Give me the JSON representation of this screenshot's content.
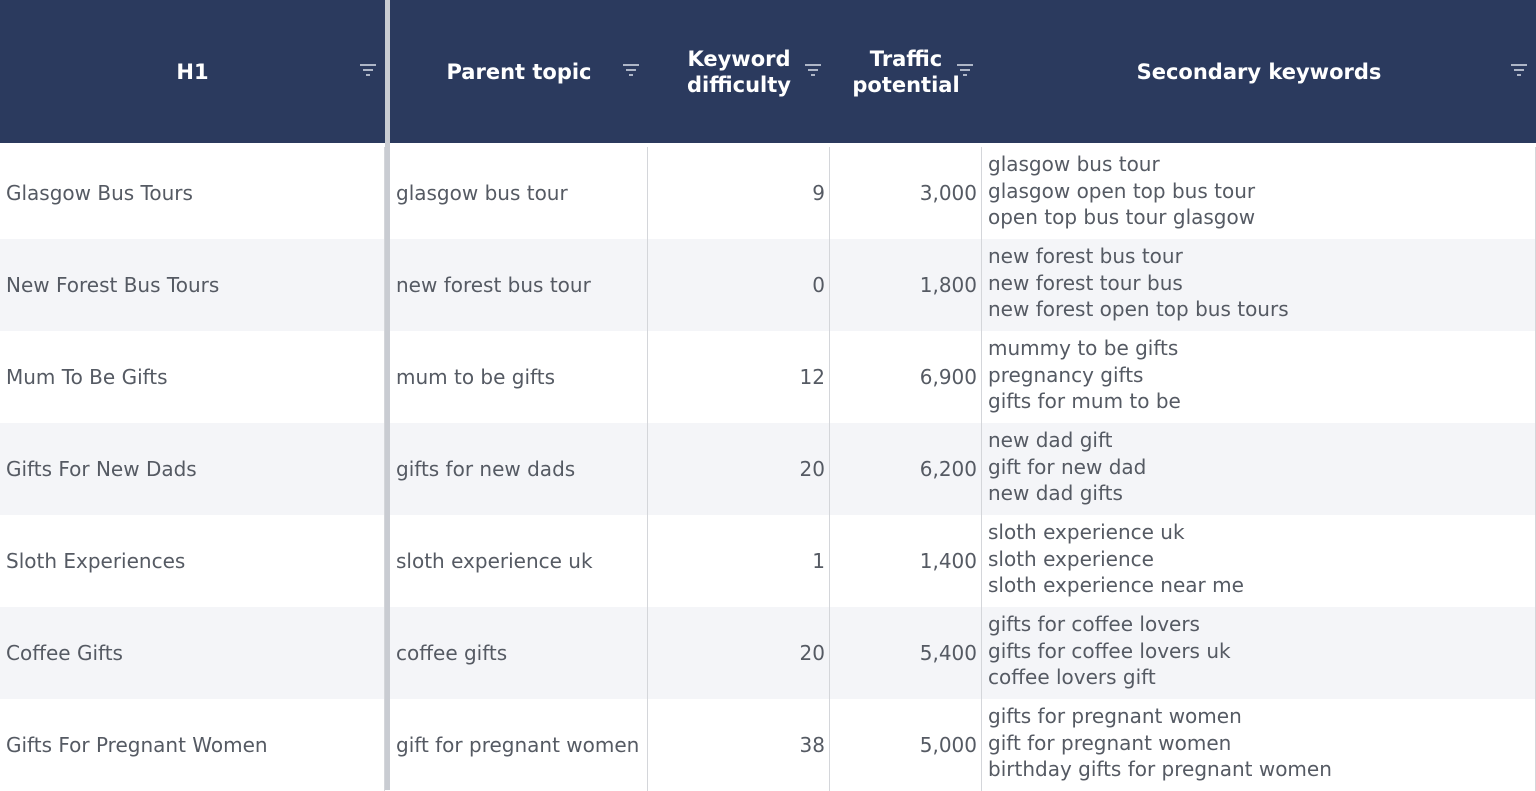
{
  "header": {
    "columns": [
      "H1",
      "Parent topic",
      "Keyword difficulty",
      "Traffic potential",
      "Secondary keywords"
    ]
  },
  "rows": [
    {
      "h1": "Glasgow Bus Tours",
      "parent_topic": "glasgow bus tour",
      "keyword_difficulty": "9",
      "traffic_potential": "3,000",
      "secondary_keywords": [
        "glasgow bus tour",
        "glasgow open top bus tour",
        "open top bus tour glasgow"
      ]
    },
    {
      "h1": "New Forest Bus Tours",
      "parent_topic": "new forest bus tour",
      "keyword_difficulty": "0",
      "traffic_potential": "1,800",
      "secondary_keywords": [
        "new forest bus tour",
        "new forest tour bus",
        "new forest open top bus tours"
      ]
    },
    {
      "h1": "Mum To Be Gifts",
      "parent_topic": "mum to be gifts",
      "keyword_difficulty": "12",
      "traffic_potential": "6,900",
      "secondary_keywords": [
        "mummy to be gifts",
        "pregnancy gifts",
        "gifts for mum to be"
      ]
    },
    {
      "h1": "Gifts For New Dads",
      "parent_topic": "gifts for new dads",
      "keyword_difficulty": "20",
      "traffic_potential": "6,200",
      "secondary_keywords": [
        "new dad gift",
        "gift for new dad",
        "new dad gifts"
      ]
    },
    {
      "h1": "Sloth Experiences",
      "parent_topic": "sloth experience uk",
      "keyword_difficulty": "1",
      "traffic_potential": "1,400",
      "secondary_keywords": [
        "sloth experience uk",
        "sloth experience",
        "sloth experience near me"
      ]
    },
    {
      "h1": "Coffee Gifts",
      "parent_topic": "coffee gifts",
      "keyword_difficulty": "20",
      "traffic_potential": "5,400",
      "secondary_keywords": [
        "gifts for coffee lovers",
        "gifts for coffee lovers uk",
        "coffee lovers gift"
      ]
    },
    {
      "h1": "Gifts For Pregnant Women",
      "parent_topic": "gift for pregnant women",
      "keyword_difficulty": "38",
      "traffic_potential": "5,000",
      "secondary_keywords": [
        "gifts for pregnant women",
        "gift for pregnant women",
        "birthday gifts for pregnant women"
      ]
    }
  ]
}
